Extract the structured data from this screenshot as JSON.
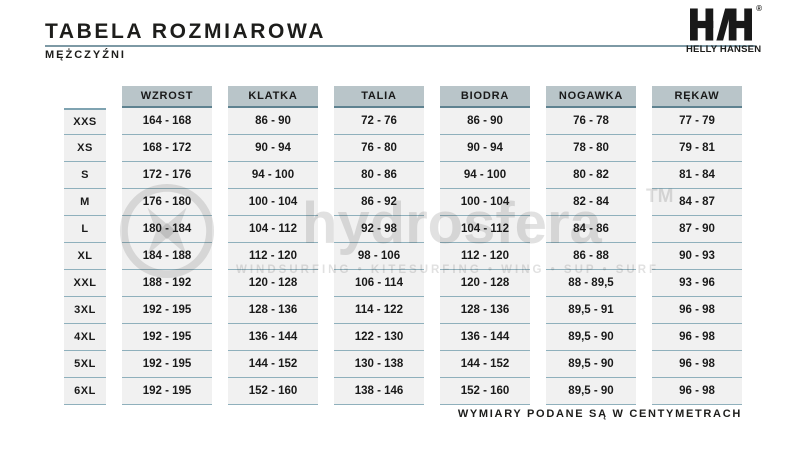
{
  "header": {
    "title": "TABELA ROZMIAROWA",
    "subtitle": "MĘŻCZYŹNI",
    "brand": {
      "name": "HELLY HANSEN",
      "registered_mark": "®"
    }
  },
  "chart_data": {
    "type": "table",
    "title": "TABELA ROZMIAROWA",
    "subtitle": "MĘŻCZYŹNI",
    "columns": [
      "WZROST",
      "KLATKA",
      "TALIA",
      "BIODRA",
      "NOGAWKA",
      "RĘKAW"
    ],
    "rows": [
      {
        "size": "XXS",
        "values": [
          "164 - 168",
          "86 - 90",
          "72 - 76",
          "86 - 90",
          "76 - 78",
          "77 - 79"
        ]
      },
      {
        "size": "XS",
        "values": [
          "168 - 172",
          "90 - 94",
          "76 - 80",
          "90 - 94",
          "78 - 80",
          "79 - 81"
        ]
      },
      {
        "size": "S",
        "values": [
          "172 - 176",
          "94 - 100",
          "80 - 86",
          "94 - 100",
          "80 - 82",
          "81 - 84"
        ]
      },
      {
        "size": "M",
        "values": [
          "176 - 180",
          "100 - 104",
          "86 - 92",
          "100 - 104",
          "82 - 84",
          "84 - 87"
        ]
      },
      {
        "size": "L",
        "values": [
          "180 - 184",
          "104 - 112",
          "92 - 98",
          "104 - 112",
          "84 - 86",
          "87 - 90"
        ]
      },
      {
        "size": "XL",
        "values": [
          "184 - 188",
          "112 - 120",
          "98 - 106",
          "112 - 120",
          "86 - 88",
          "90 - 93"
        ]
      },
      {
        "size": "XXL",
        "values": [
          "188 - 192",
          "120 - 128",
          "106 - 114",
          "120 - 128",
          "88 - 89,5",
          "93 - 96"
        ]
      },
      {
        "size": "3XL",
        "values": [
          "192 - 195",
          "128 - 136",
          "114 - 122",
          "128 - 136",
          "89,5 - 91",
          "96 - 98"
        ]
      },
      {
        "size": "4XL",
        "values": [
          "192 - 195",
          "136 - 144",
          "122 - 130",
          "136 - 144",
          "89,5 - 90",
          "96 - 98"
        ]
      },
      {
        "size": "5XL",
        "values": [
          "192 - 195",
          "144 - 152",
          "130 - 138",
          "144 - 152",
          "89,5 - 90",
          "96 - 98"
        ]
      },
      {
        "size": "6XL",
        "values": [
          "192 - 195",
          "152 - 160",
          "138 - 146",
          "152 - 160",
          "89,5 - 90",
          "96 - 98"
        ]
      }
    ],
    "note": "WYMIARY PODANE SĄ W CENTYMETRACH",
    "units": "cm"
  },
  "footer": {
    "note": "WYMIARY PODANE SĄ W CENTYMETRACH"
  },
  "watermark": {
    "name": "hydrosfera",
    "tm": "TM",
    "tagline": "WINDSURFING • KITESURFING • WING • SUP • SURF"
  },
  "colors": {
    "header_cell_bg": "#b9c5c9",
    "header_cell_border": "#5e8290",
    "row_separator": "#8fb0bc",
    "cell_bg": "#f1f1f1",
    "title_rule": "#7d99a5",
    "text": "#1d1d1b"
  }
}
